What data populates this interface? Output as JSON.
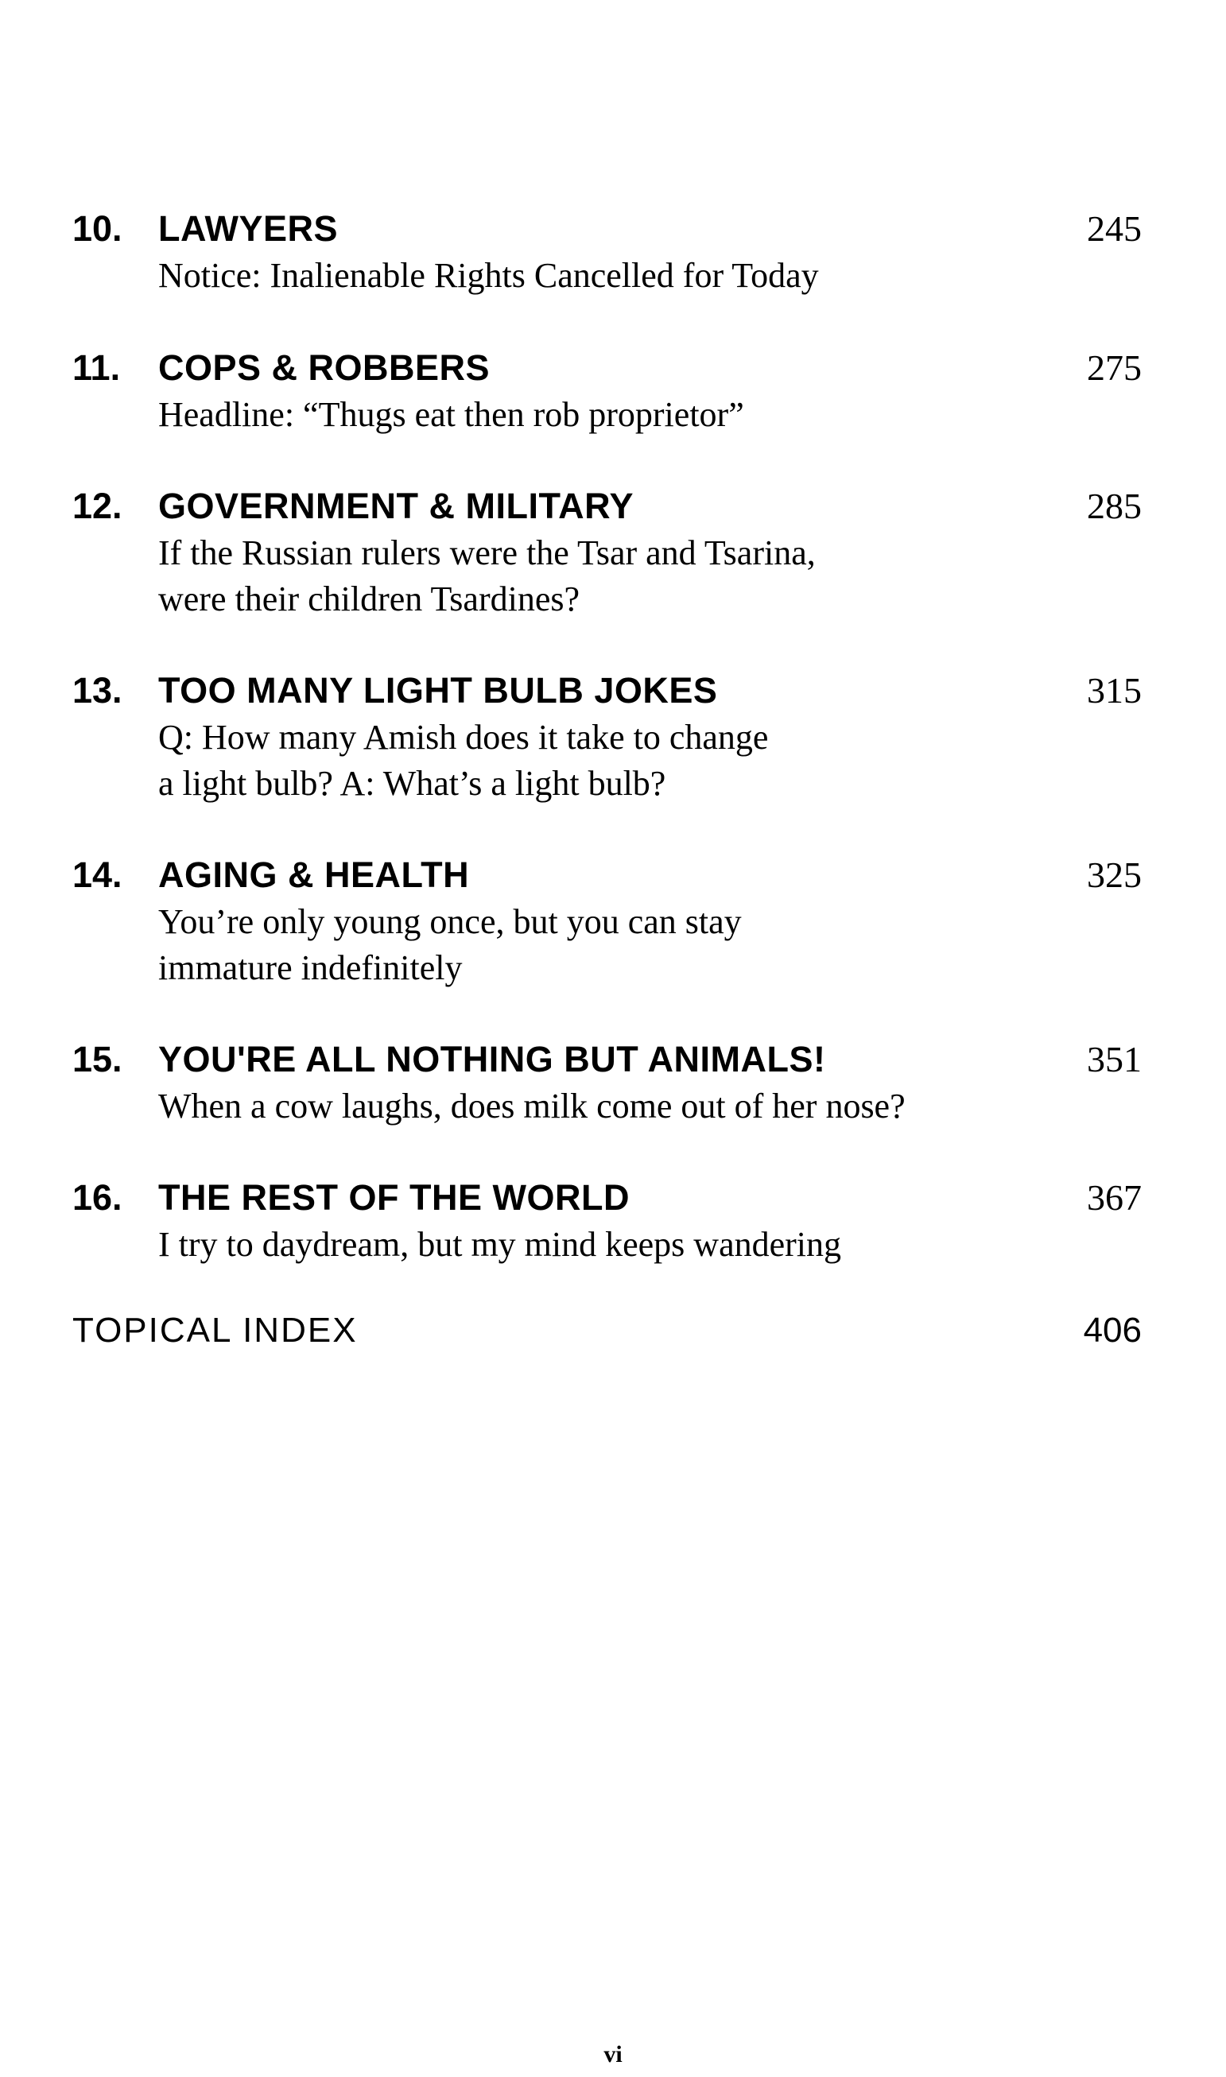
{
  "entries": [
    {
      "number": "10.",
      "title": "LAWYERS",
      "page": "245",
      "subtitle": [
        "Notice: Inalienable Rights Cancelled for Today"
      ]
    },
    {
      "number": "11.",
      "title": "COPS & ROBBERS",
      "page": "275",
      "subtitle": [
        "Headline: “Thugs eat then rob proprietor”"
      ]
    },
    {
      "number": "12.",
      "title": "GOVERNMENT & MILITARY",
      "page": "285",
      "subtitle": [
        "If the Russian rulers were the Tsar and Tsarina,",
        "were their children Tsardines?"
      ]
    },
    {
      "number": "13.",
      "title": "TOO MANY LIGHT BULB JOKES",
      "page": "315",
      "subtitle": [
        "Q: How many Amish does it take to change",
        "a light bulb? A: What’s a light bulb?"
      ]
    },
    {
      "number": "14.",
      "title": "AGING & HEALTH",
      "page": "325",
      "subtitle": [
        "You’re only young once, but you can stay",
        "immature indefinitely"
      ]
    },
    {
      "number": "15.",
      "title": "YOU'RE ALL NOTHING BUT ANIMALS!",
      "page": "351",
      "subtitle": [
        "When a cow laughs, does milk come out of her nose?"
      ]
    },
    {
      "number": "16.",
      "title": "THE REST OF THE WORLD",
      "page": "367",
      "subtitle": [
        "I try to daydream, but my mind keeps wandering"
      ]
    }
  ],
  "index": {
    "label": "TOPICAL INDEX",
    "page": "406"
  },
  "folio": "vi"
}
